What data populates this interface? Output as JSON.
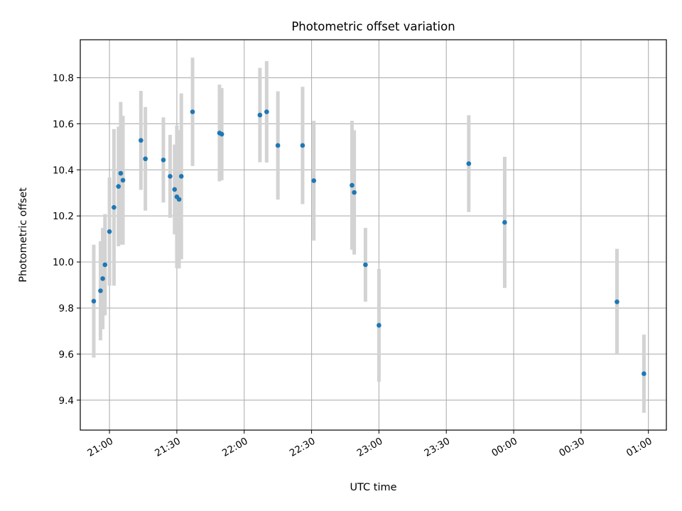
{
  "chart_data": {
    "type": "scatter",
    "title": "Photometric offset variation",
    "xlabel": "UTC time",
    "ylabel": "Photometric offset",
    "grid": true,
    "xlim": [
      "20:47",
      "01:08"
    ],
    "ylim": [
      9.27,
      10.965
    ],
    "x_ticks": [
      "21:00",
      "21:30",
      "22:00",
      "22:30",
      "23:00",
      "23:30",
      "00:00",
      "00:30",
      "01:00"
    ],
    "y_ticks": [
      "9.4",
      "9.6",
      "9.8",
      "10.0",
      "10.2",
      "10.4",
      "10.6",
      "10.8"
    ],
    "colors": {
      "points": "#1f77b4",
      "errorbars": "#d3d3d3",
      "grid": "#b0b0b0"
    },
    "points": [
      {
        "x": "20:53",
        "y": 9.83,
        "err": 0.245
      },
      {
        "x": "20:56",
        "y": 9.875,
        "err": 0.215
      },
      {
        "x": "20:57",
        "y": 9.928,
        "err": 0.22
      },
      {
        "x": "20:58",
        "y": 9.988,
        "err": 0.22
      },
      {
        "x": "21:00",
        "y": 10.132,
        "err": 0.235
      },
      {
        "x": "21:02",
        "y": 10.237,
        "err": 0.34
      },
      {
        "x": "21:04",
        "y": 10.328,
        "err": 0.26
      },
      {
        "x": "21:05",
        "y": 10.385,
        "err": 0.31
      },
      {
        "x": "21:06",
        "y": 10.355,
        "err": 0.28
      },
      {
        "x": "21:14",
        "y": 10.528,
        "err": 0.215
      },
      {
        "x": "21:16",
        "y": 10.448,
        "err": 0.225
      },
      {
        "x": "21:24",
        "y": 10.443,
        "err": 0.185
      },
      {
        "x": "21:27",
        "y": 10.372,
        "err": 0.18
      },
      {
        "x": "21:29",
        "y": 10.315,
        "err": 0.195
      },
      {
        "x": "21:30",
        "y": 10.283,
        "err": 0.31
      },
      {
        "x": "21:31",
        "y": 10.272,
        "err": 0.3
      },
      {
        "x": "21:32",
        "y": 10.372,
        "err": 0.36
      },
      {
        "x": "21:37",
        "y": 10.652,
        "err": 0.235
      },
      {
        "x": "21:49",
        "y": 10.56,
        "err": 0.21
      },
      {
        "x": "21:50",
        "y": 10.555,
        "err": 0.2
      },
      {
        "x": "22:07",
        "y": 10.638,
        "err": 0.205
      },
      {
        "x": "22:10",
        "y": 10.652,
        "err": 0.22
      },
      {
        "x": "22:15",
        "y": 10.506,
        "err": 0.235
      },
      {
        "x": "22:26",
        "y": 10.506,
        "err": 0.255
      },
      {
        "x": "22:31",
        "y": 10.353,
        "err": 0.26
      },
      {
        "x": "22:48",
        "y": 10.333,
        "err": 0.28
      },
      {
        "x": "22:49",
        "y": 10.302,
        "err": 0.27
      },
      {
        "x": "22:54",
        "y": 9.988,
        "err": 0.16
      },
      {
        "x": "23:00",
        "y": 9.725,
        "err": 0.245
      },
      {
        "x": "23:40",
        "y": 10.427,
        "err": 0.21
      },
      {
        "x": "23:56",
        "y": 10.172,
        "err": 0.285
      },
      {
        "x": "00:46",
        "y": 9.827,
        "err": 0.23
      },
      {
        "x": "00:58",
        "y": 9.515,
        "err": 0.17
      }
    ]
  }
}
